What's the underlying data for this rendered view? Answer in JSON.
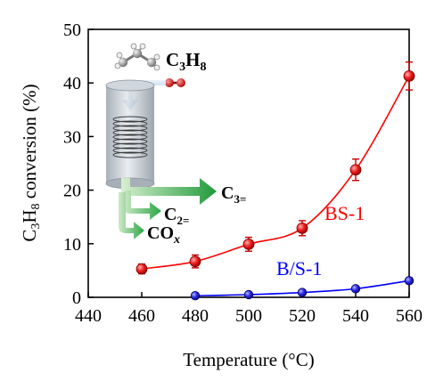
{
  "chart_data": {
    "type": "scatter",
    "xlabel": "Temperature (°C)",
    "ylabel_parts": [
      "C",
      "3",
      "H",
      "8",
      " conversion (%)"
    ],
    "xlim": [
      440,
      560
    ],
    "ylim": [
      0,
      50
    ],
    "x_ticks": [
      440,
      460,
      480,
      500,
      520,
      540,
      560
    ],
    "y_ticks": [
      0,
      10,
      20,
      30,
      40,
      50
    ],
    "grid": false,
    "series": [
      {
        "name": "BS-1",
        "color": "#ff0000",
        "marker_color": "#ee1c1c",
        "errorbar_color": "#cc0000",
        "x": [
          460,
          480,
          500,
          520,
          540,
          560
        ],
        "y": [
          5.3,
          6.7,
          9.9,
          12.9,
          23.8,
          41.3
        ],
        "yerr": [
          0.9,
          1.2,
          1.3,
          1.4,
          2.0,
          2.6
        ],
        "fit": "smooth"
      },
      {
        "name": "B/S-1",
        "color": "#0000ff",
        "marker_color": "#2323dd",
        "errorbar_color": "#7a1fa0",
        "x": [
          480,
          500,
          520,
          540,
          560
        ],
        "y": [
          0.3,
          0.5,
          0.9,
          1.6,
          3.1
        ],
        "yerr": [
          0.3,
          0.3,
          0.3,
          0.4,
          0.5
        ],
        "fit": "smooth"
      }
    ],
    "annotations": [
      {
        "text": "BS-1",
        "color": "#ff0000",
        "near_series": "BS-1"
      },
      {
        "text": "B/S-1",
        "color": "#0000ff",
        "near_series": "B/S-1"
      }
    ],
    "inset": {
      "feed_label": {
        "main": "C",
        "sub1": "3",
        "mid": "H",
        "sub2": "8"
      },
      "products": [
        {
          "main": "C",
          "sub": "3="
        },
        {
          "main": "C",
          "sub": "2="
        },
        {
          "main": "CO",
          "sub": "x"
        }
      ]
    }
  }
}
